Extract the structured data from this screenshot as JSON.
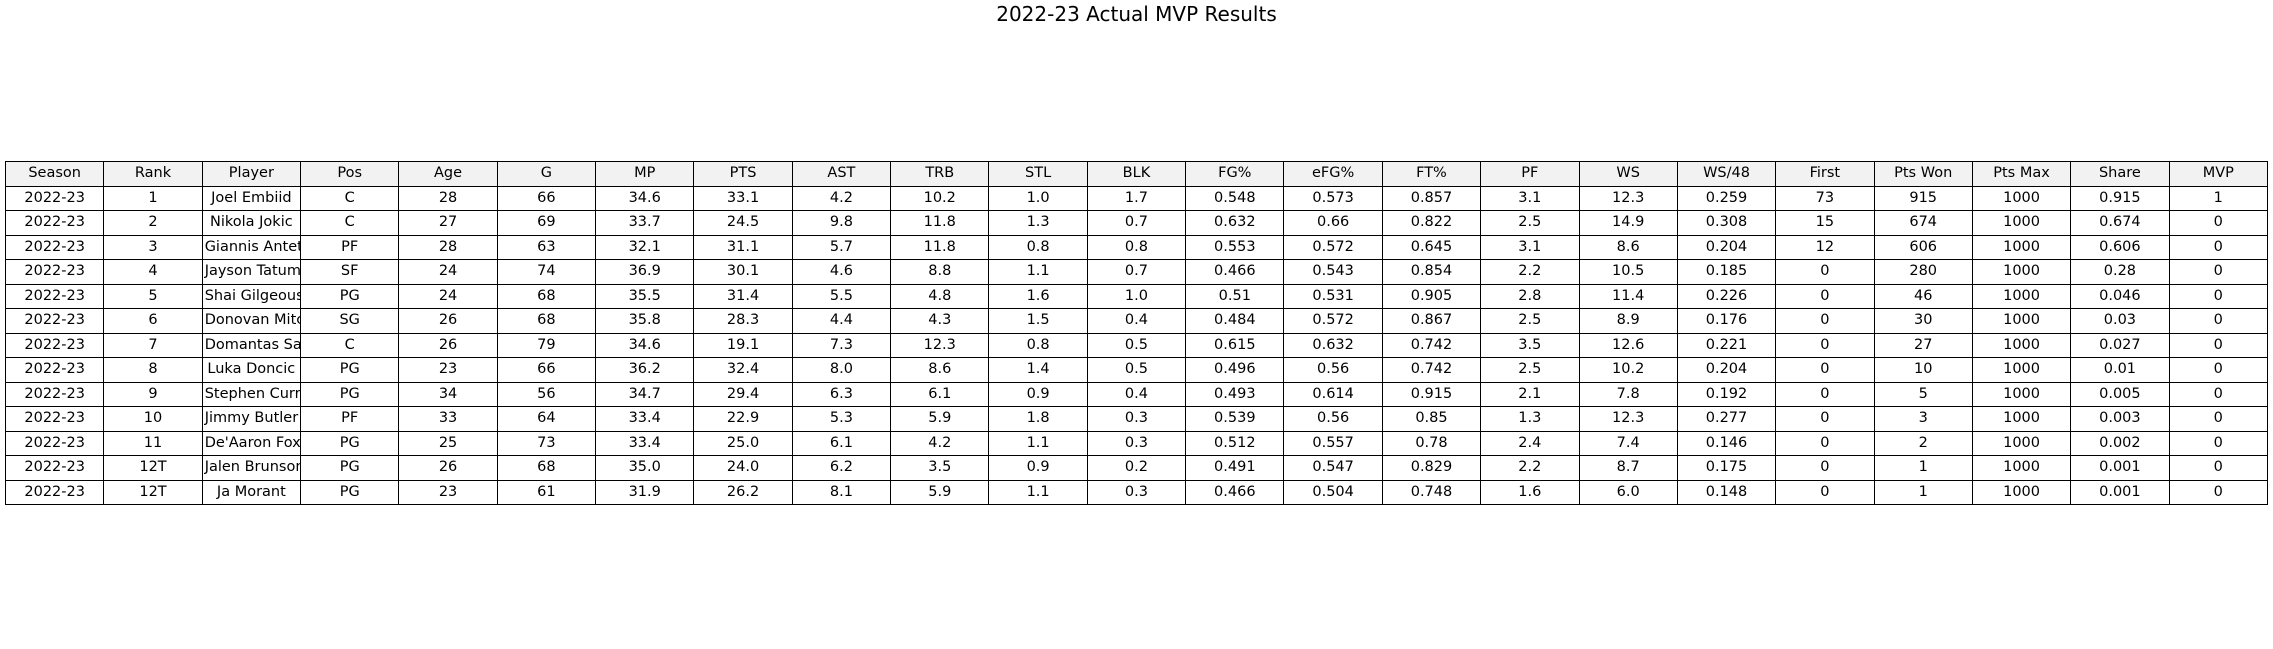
{
  "chart_data": {
    "type": "table",
    "title": "2022-23 Actual MVP Results",
    "columns": [
      "Season",
      "Rank",
      "Player",
      "Pos",
      "Age",
      "G",
      "MP",
      "PTS",
      "AST",
      "TRB",
      "STL",
      "BLK",
      "FG%",
      "eFG%",
      "FT%",
      "PF",
      "WS",
      "WS/48",
      "First",
      "Pts Won",
      "Pts Max",
      "Share",
      "MVP"
    ],
    "rows": [
      [
        "2022-23",
        "1",
        "Joel Embiid",
        "C",
        "28",
        "66",
        "34.6",
        "33.1",
        "4.2",
        "10.2",
        "1.0",
        "1.7",
        "0.548",
        "0.573",
        "0.857",
        "3.1",
        "12.3",
        "0.259",
        "73",
        "915",
        "1000",
        "0.915",
        "1"
      ],
      [
        "2022-23",
        "2",
        "Nikola Jokic",
        "C",
        "27",
        "69",
        "33.7",
        "24.5",
        "9.8",
        "11.8",
        "1.3",
        "0.7",
        "0.632",
        "0.66",
        "0.822",
        "2.5",
        "14.9",
        "0.308",
        "15",
        "674",
        "1000",
        "0.674",
        "0"
      ],
      [
        "2022-23",
        "3",
        "Giannis Antetokounmpo",
        "PF",
        "28",
        "63",
        "32.1",
        "31.1",
        "5.7",
        "11.8",
        "0.8",
        "0.8",
        "0.553",
        "0.572",
        "0.645",
        "3.1",
        "8.6",
        "0.204",
        "12",
        "606",
        "1000",
        "0.606",
        "0"
      ],
      [
        "2022-23",
        "4",
        "Jayson Tatum",
        "SF",
        "24",
        "74",
        "36.9",
        "30.1",
        "4.6",
        "8.8",
        "1.1",
        "0.7",
        "0.466",
        "0.543",
        "0.854",
        "2.2",
        "10.5",
        "0.185",
        "0",
        "280",
        "1000",
        "0.28",
        "0"
      ],
      [
        "2022-23",
        "5",
        "Shai Gilgeous-Alexander",
        "PG",
        "24",
        "68",
        "35.5",
        "31.4",
        "5.5",
        "4.8",
        "1.6",
        "1.0",
        "0.51",
        "0.531",
        "0.905",
        "2.8",
        "11.4",
        "0.226",
        "0",
        "46",
        "1000",
        "0.046",
        "0"
      ],
      [
        "2022-23",
        "6",
        "Donovan Mitchell",
        "SG",
        "26",
        "68",
        "35.8",
        "28.3",
        "4.4",
        "4.3",
        "1.5",
        "0.4",
        "0.484",
        "0.572",
        "0.867",
        "2.5",
        "8.9",
        "0.176",
        "0",
        "30",
        "1000",
        "0.03",
        "0"
      ],
      [
        "2022-23",
        "7",
        "Domantas Sabonis",
        "C",
        "26",
        "79",
        "34.6",
        "19.1",
        "7.3",
        "12.3",
        "0.8",
        "0.5",
        "0.615",
        "0.632",
        "0.742",
        "3.5",
        "12.6",
        "0.221",
        "0",
        "27",
        "1000",
        "0.027",
        "0"
      ],
      [
        "2022-23",
        "8",
        "Luka Doncic",
        "PG",
        "23",
        "66",
        "36.2",
        "32.4",
        "8.0",
        "8.6",
        "1.4",
        "0.5",
        "0.496",
        "0.56",
        "0.742",
        "2.5",
        "10.2",
        "0.204",
        "0",
        "10",
        "1000",
        "0.01",
        "0"
      ],
      [
        "2022-23",
        "9",
        "Stephen Curry",
        "PG",
        "34",
        "56",
        "34.7",
        "29.4",
        "6.3",
        "6.1",
        "0.9",
        "0.4",
        "0.493",
        "0.614",
        "0.915",
        "2.1",
        "7.8",
        "0.192",
        "0",
        "5",
        "1000",
        "0.005",
        "0"
      ],
      [
        "2022-23",
        "10",
        "Jimmy Butler",
        "PF",
        "33",
        "64",
        "33.4",
        "22.9",
        "5.3",
        "5.9",
        "1.8",
        "0.3",
        "0.539",
        "0.56",
        "0.85",
        "1.3",
        "12.3",
        "0.277",
        "0",
        "3",
        "1000",
        "0.003",
        "0"
      ],
      [
        "2022-23",
        "11",
        "De'Aaron Fox",
        "PG",
        "25",
        "73",
        "33.4",
        "25.0",
        "6.1",
        "4.2",
        "1.1",
        "0.3",
        "0.512",
        "0.557",
        "0.78",
        "2.4",
        "7.4",
        "0.146",
        "0",
        "2",
        "1000",
        "0.002",
        "0"
      ],
      [
        "2022-23",
        "12T",
        "Jalen Brunson",
        "PG",
        "26",
        "68",
        "35.0",
        "24.0",
        "6.2",
        "3.5",
        "0.9",
        "0.2",
        "0.491",
        "0.547",
        "0.829",
        "2.2",
        "8.7",
        "0.175",
        "0",
        "1",
        "1000",
        "0.001",
        "0"
      ],
      [
        "2022-23",
        "12T",
        "Ja Morant",
        "PG",
        "23",
        "61",
        "31.9",
        "26.2",
        "8.1",
        "5.9",
        "1.1",
        "0.3",
        "0.466",
        "0.504",
        "0.748",
        "1.6",
        "6.0",
        "0.148",
        "0",
        "1",
        "1000",
        "0.001",
        "0"
      ]
    ]
  }
}
